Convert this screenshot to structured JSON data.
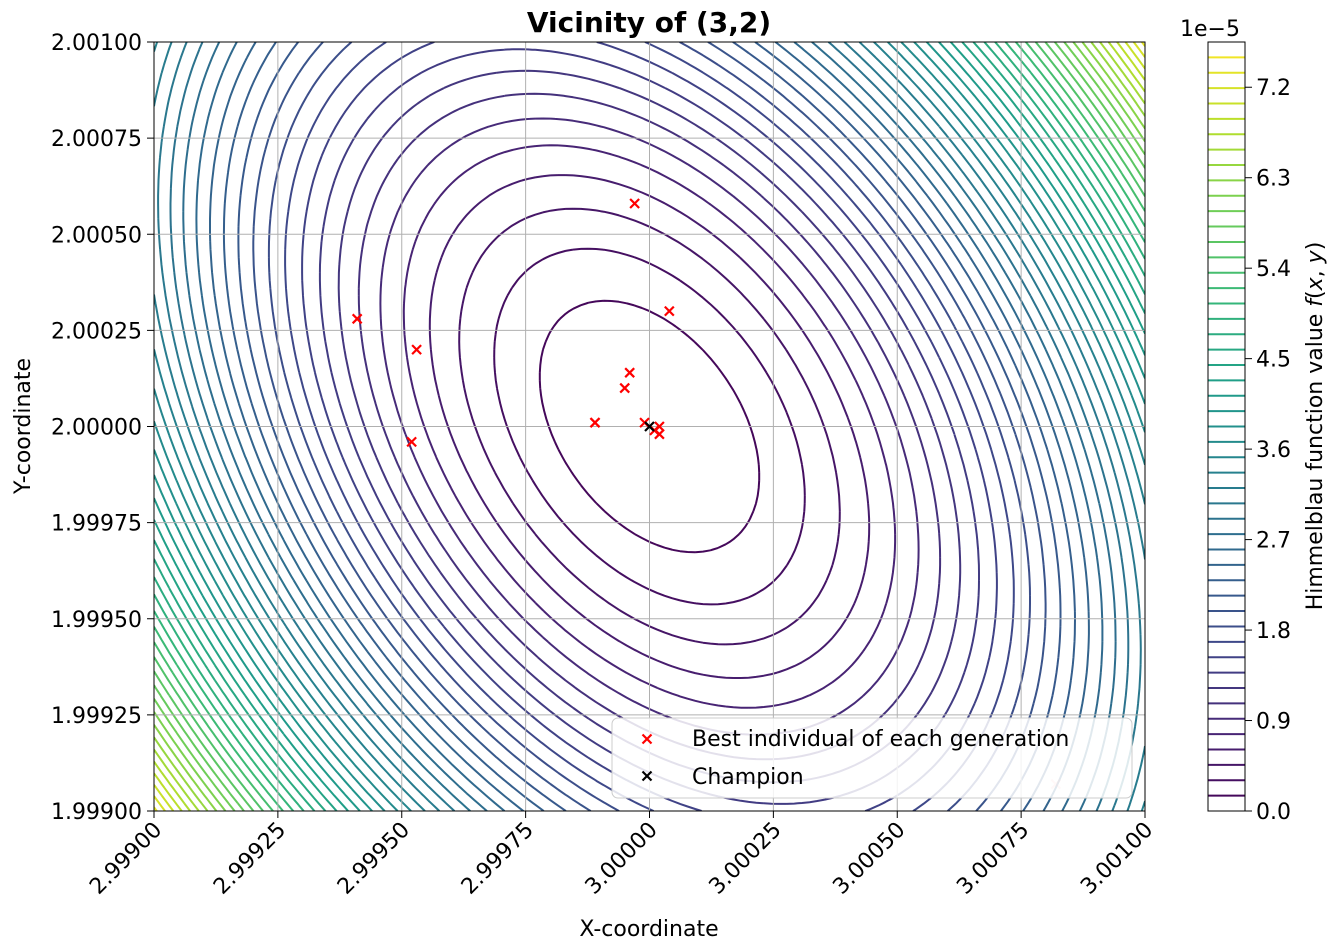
{
  "chart_data": {
    "type": "contour",
    "title": "Vicinity of (3,2)",
    "xlabel": "X-coordinate",
    "ylabel": "Y-coordinate",
    "xlim": [
      2.999,
      3.001
    ],
    "ylim": [
      1.999,
      2.001
    ],
    "xticks": [
      "2.99900",
      "2.99925",
      "2.99950",
      "2.99975",
      "3.00000",
      "3.00025",
      "3.00050",
      "3.00075",
      "3.00100"
    ],
    "yticks": [
      "1.99900",
      "1.99925",
      "1.99950",
      "1.99975",
      "2.00000",
      "2.00025",
      "2.00050",
      "2.00075",
      "2.00100"
    ],
    "grid": true,
    "function": "Himmelblau f(x,y) = (x^2 + y - 11)^2 + (x + y^2 - 7)^2",
    "contour_levels": 50,
    "colormap": "viridis",
    "colorbar": {
      "label": "Himmelblau function value f(x, y)",
      "offset_label": "1e−5",
      "ticks": [
        "0.0",
        "0.9",
        "1.8",
        "2.7",
        "3.6",
        "4.5",
        "5.4",
        "6.3",
        "7.2"
      ],
      "max": 7.65
    },
    "series": [
      {
        "name": "Best individual of each generation",
        "marker": "x",
        "color": "#ff0000",
        "points": [
          [
            2.99997,
            2.00058
          ],
          [
            3.00004,
            2.0003
          ],
          [
            2.99941,
            2.00028
          ],
          [
            2.99953,
            2.0002
          ],
          [
            2.99996,
            2.00014
          ],
          [
            2.99995,
            2.0001
          ],
          [
            2.99989,
            2.00001
          ],
          [
            2.99989,
            2.00001
          ],
          [
            2.99999,
            2.00001
          ],
          [
            3.00001,
            1.99999
          ],
          [
            3.00002,
            2.0
          ],
          [
            3.00002,
            1.99998
          ],
          [
            2.99952,
            1.99996
          ],
          [
            3.00082,
            1.99907
          ]
        ]
      },
      {
        "name": "Champion",
        "marker": "x",
        "color": "#000000",
        "points": [
          [
            3.0,
            2.0
          ]
        ]
      }
    ],
    "legend": "lower-right"
  }
}
